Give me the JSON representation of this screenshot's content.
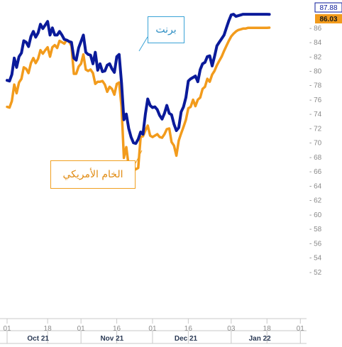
{
  "chart_data": {
    "type": "line",
    "title": "",
    "xlabel": "",
    "ylabel": "",
    "ylim": [
      50,
      88
    ],
    "y_ticks": [
      52,
      54,
      56,
      58,
      60,
      62,
      64,
      66,
      68,
      70,
      72,
      74,
      76,
      78,
      80,
      82,
      84,
      86
    ],
    "y_tick_format": "- {v}",
    "x_day_ticks": [
      {
        "label": "01",
        "day": 0
      },
      {
        "label": "18",
        "day": 17
      },
      {
        "label": "01",
        "day": 31
      },
      {
        "label": "16",
        "day": 46
      },
      {
        "label": "01",
        "day": 61
      },
      {
        "label": "16",
        "day": 76
      },
      {
        "label": "03",
        "day": 94
      },
      {
        "label": "18",
        "day": 109
      },
      {
        "label": "01",
        "day": 123
      }
    ],
    "x_month_labels": [
      {
        "label": "Oct 21",
        "day": 13
      },
      {
        "label": "Nov 21",
        "day": 44
      },
      {
        "label": "Dec 21",
        "day": 75
      },
      {
        "label": "Jan 22",
        "day": 106
      }
    ],
    "grid": false,
    "series": [
      {
        "name": "برنت",
        "color": "#0a1a9a",
        "last_value_label": "87.88",
        "x": [
          0,
          1,
          2,
          3,
          4,
          5,
          6,
          7,
          8,
          9,
          10,
          11,
          12,
          13,
          14,
          15,
          16,
          17,
          18,
          19,
          20,
          21,
          22,
          23,
          24,
          25,
          26,
          27,
          28,
          29,
          30,
          31,
          32,
          33,
          34,
          35,
          36,
          37,
          38,
          39,
          40,
          41,
          42,
          43,
          44,
          45,
          46,
          47,
          48,
          49,
          50,
          51,
          52,
          53,
          54,
          55,
          56,
          57,
          58,
          59,
          60,
          61,
          62,
          63,
          64,
          65,
          66,
          67,
          68,
          69,
          70,
          71,
          72,
          73,
          74,
          75,
          76,
          77,
          78,
          79,
          80,
          81,
          82,
          83,
          84,
          85,
          86,
          87,
          88,
          89,
          90,
          91,
          92,
          93,
          94,
          95,
          96,
          97,
          98,
          99,
          100,
          101,
          102,
          103,
          104,
          105,
          106,
          107,
          108,
          109,
          110
        ],
        "values": [
          78.7,
          78.6,
          79.5,
          81.8,
          80.5,
          82.0,
          82.5,
          84.2,
          84.0,
          83.4,
          84.8,
          85.5,
          84.7,
          85.3,
          86.5,
          85.9,
          86.4,
          86.9,
          85.0,
          86.0,
          85.0,
          85.0,
          85.5,
          85.0,
          84.4,
          84.3,
          84.1,
          84.0,
          81.8,
          81.5,
          83.2,
          84.1,
          85.0,
          82.6,
          82.3,
          82.2,
          81.0,
          82.6,
          80.1,
          81.0,
          79.9,
          80.0,
          80.8,
          81.0,
          80.3,
          79.8,
          82.0,
          82.3,
          78.3,
          73.2,
          74.0,
          72.0,
          70.8,
          70.0,
          69.9,
          70.5,
          71.5,
          71.2,
          74.0,
          76.1,
          75.2,
          74.9,
          75.0,
          74.6,
          73.8,
          73.3,
          74.1,
          75.2,
          74.1,
          73.9,
          72.6,
          71.7,
          72.1,
          74.3,
          75.0,
          76.3,
          78.6,
          78.9,
          79.1,
          79.3,
          78.5,
          80.2,
          81.0,
          81.2,
          82.0,
          82.1,
          80.7,
          82.0,
          83.5,
          84.0,
          84.5,
          85.0,
          86.0,
          87.0,
          87.8,
          87.9,
          87.6,
          87.7,
          87.8,
          87.9,
          87.9,
          87.9,
          87.9,
          87.9,
          87.9,
          87.9,
          87.9,
          87.9,
          87.9,
          87.9,
          87.88
        ]
      },
      {
        "name": "الخام الأمريكي",
        "color": "#f29b1c",
        "last_value_label": "86.03",
        "x": [
          0,
          1,
          2,
          3,
          4,
          5,
          6,
          7,
          8,
          9,
          10,
          11,
          12,
          13,
          14,
          15,
          16,
          17,
          18,
          19,
          20,
          21,
          22,
          23,
          24,
          25,
          26,
          27,
          28,
          29,
          30,
          31,
          32,
          33,
          34,
          35,
          36,
          37,
          38,
          39,
          40,
          41,
          42,
          43,
          44,
          45,
          46,
          47,
          48,
          49,
          50,
          51,
          52,
          53,
          54,
          55,
          56,
          57,
          58,
          59,
          60,
          61,
          62,
          63,
          64,
          65,
          66,
          67,
          68,
          69,
          70,
          71,
          72,
          73,
          74,
          75,
          76,
          77,
          78,
          79,
          80,
          81,
          82,
          83,
          84,
          85,
          86,
          87,
          88,
          89,
          90,
          91,
          92,
          93,
          94,
          95,
          96,
          97,
          98,
          99,
          100,
          101,
          102,
          103,
          104,
          105,
          106,
          107,
          108,
          109,
          110
        ],
        "values": [
          75.0,
          74.9,
          75.8,
          78.1,
          76.9,
          78.4,
          78.9,
          80.5,
          80.3,
          79.7,
          81.1,
          81.8,
          81.1,
          81.7,
          82.9,
          82.4,
          82.9,
          83.3,
          82.0,
          83.3,
          83.6,
          83.2,
          84.2,
          84.0,
          83.8,
          84.3,
          84.1,
          83.5,
          79.6,
          79.6,
          80.6,
          81.0,
          82.3,
          80.2,
          80.0,
          80.2,
          79.7,
          78.2,
          78.5,
          78.5,
          78.6,
          78.1,
          77.1,
          77.8,
          77.5,
          76.7,
          78.2,
          78.4,
          75.0,
          67.9,
          69.4,
          66.7,
          66.1,
          66.6,
          66.3,
          66.5,
          70.8,
          70.9,
          71.7,
          72.4,
          71.0,
          70.8,
          71.0,
          71.2,
          70.8,
          70.7,
          71.2,
          71.9,
          72.0,
          70.1,
          69.6,
          68.2,
          70.3,
          71.3,
          72.2,
          73.2,
          74.8,
          75.0,
          76.0,
          75.1,
          76.0,
          76.3,
          77.5,
          77.8,
          78.9,
          78.5,
          79.5,
          80.0,
          80.8,
          81.4,
          82.0,
          82.8,
          83.5,
          84.2,
          84.8,
          85.2,
          85.5,
          85.7,
          85.8,
          85.9,
          85.9,
          86.0,
          86.0,
          86.0,
          86.0,
          86.0,
          86.0,
          86.0,
          86.0,
          86.0,
          86.03
        ]
      }
    ],
    "annotations": [
      {
        "series": "برنت",
        "text": "برنت"
      },
      {
        "series": "الخام الأمريكي",
        "text": "الخام الأمريكي"
      }
    ]
  }
}
